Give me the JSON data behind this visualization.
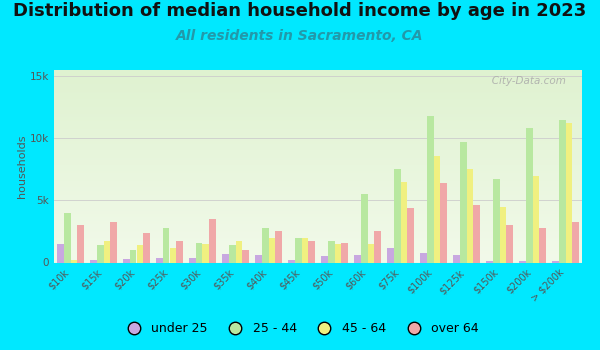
{
  "title": "Distribution of median household income by age in 2023",
  "subtitle": "All residents in Sacramento, CA",
  "ylabel": "households",
  "categories": [
    "$10k",
    "$15k",
    "$20k",
    "$25k",
    "$30k",
    "$35k",
    "$40k",
    "$45k",
    "$50k",
    "$60k",
    "$75k",
    "$100k",
    "$125k",
    "$150k",
    "$200k",
    "> $200k"
  ],
  "series_keys": [
    "under 25",
    "25 - 44",
    "45 - 64",
    "over 64"
  ],
  "series": {
    "under 25": [
      1500,
      200,
      250,
      400,
      350,
      700,
      600,
      200,
      500,
      600,
      1200,
      800,
      600,
      150,
      100,
      100
    ],
    "25 - 44": [
      4000,
      1400,
      1000,
      2800,
      1600,
      1400,
      2800,
      2000,
      1700,
      5500,
      7500,
      11800,
      9700,
      6700,
      10800,
      11500
    ],
    "45 - 64": [
      200,
      1700,
      1400,
      1200,
      1500,
      1700,
      2000,
      2000,
      1500,
      1500,
      6500,
      8600,
      7500,
      4500,
      7000,
      11200
    ],
    "over 64": [
      3000,
      3300,
      2400,
      1700,
      3500,
      1000,
      2500,
      1700,
      1600,
      2500,
      4400,
      6400,
      4600,
      3000,
      2800,
      3300
    ]
  },
  "colors": {
    "under 25": "#c8a8e0",
    "25 - 44": "#b8e8a0",
    "45 - 64": "#f0f080",
    "over 64": "#f0a8a8"
  },
  "ylim": [
    0,
    15500
  ],
  "yticks": [
    0,
    5000,
    10000,
    15000
  ],
  "ytick_labels": [
    "0",
    "5k",
    "10k",
    "15k"
  ],
  "background_color": "#00e8ff",
  "plot_bg_color": "#edf7e4",
  "grid_color": "#cccccc",
  "watermark": "   City-Data.com",
  "title_fontsize": 13,
  "subtitle_fontsize": 10,
  "ylabel_fontsize": 8,
  "legend_fontsize": 9,
  "tick_fontsize": 7,
  "subtitle_color": "#2299aa"
}
